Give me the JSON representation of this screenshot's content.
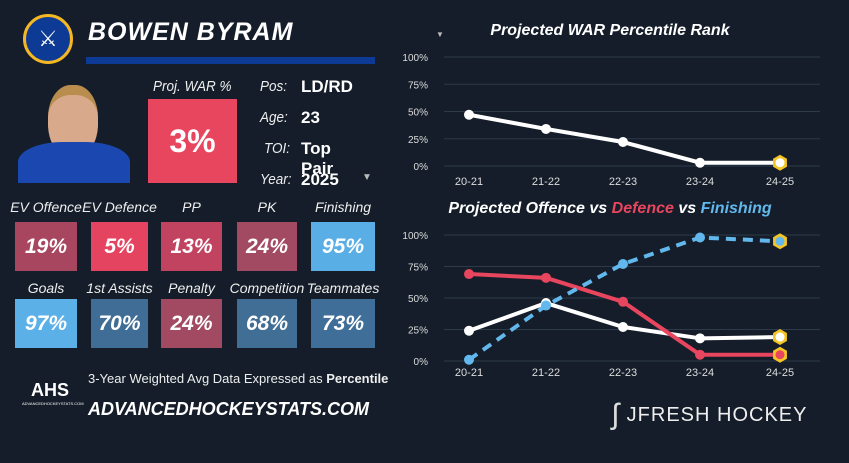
{
  "player": {
    "name": "BOWEN BYRAM",
    "team_logo": "buffalo-sabres-logo",
    "proj_war_label": "Proj. WAR %",
    "proj_war_value": "3%",
    "proj_war_color": "#e8455f",
    "info": [
      {
        "label": "Pos:",
        "value": "LD/RD"
      },
      {
        "label": "Age:",
        "value": "23"
      },
      {
        "label": "TOI:",
        "value": "Top Pair"
      },
      {
        "label": "Year:",
        "value": "2025"
      }
    ]
  },
  "tiles": [
    {
      "label": "EV Offence",
      "value": "19%",
      "color": "#a8465f"
    },
    {
      "label": "EV Defence",
      "value": "5%",
      "color": "#e4445f"
    },
    {
      "label": "PP",
      "value": "13%",
      "color": "#c24360"
    },
    {
      "label": "PK",
      "value": "24%",
      "color": "#a24a62"
    },
    {
      "label": "Finishing",
      "value": "95%",
      "color": "#5aaee6"
    },
    {
      "label": "Goals",
      "value": "97%",
      "color": "#5cb0e8"
    },
    {
      "label": "1st Assists",
      "value": "70%",
      "color": "#3f6d95"
    },
    {
      "label": "Penalty",
      "value": "24%",
      "color": "#a24a62"
    },
    {
      "label": "Competition",
      "value": "68%",
      "color": "#416e94"
    },
    {
      "label": "Teammates",
      "value": "73%",
      "color": "#3f6f98"
    }
  ],
  "footer": {
    "note_prefix": "3-Year Weighted Avg Data Expressed as ",
    "note_bold": "Percentile",
    "site": "ADVANCEDHOCKEYSTATS.COM",
    "ahs_logo": "AHS",
    "brand": "JFRESH HOCKEY"
  },
  "chart_data": [
    {
      "type": "line",
      "title": "Projected WAR Percentile Rank",
      "categories": [
        "20-21",
        "21-22",
        "22-23",
        "23-24",
        "24-25"
      ],
      "ylim": [
        0,
        100
      ],
      "yticks": [
        "0%",
        "25%",
        "50%",
        "75%",
        "100%"
      ],
      "grid": true,
      "series": [
        {
          "values": [
            47,
            34,
            22,
            3,
            3
          ],
          "color": "#ffffff"
        }
      ]
    },
    {
      "type": "line",
      "title": {
        "parts": [
          "Projected Offence vs ",
          "Defence",
          " vs ",
          "Finishing"
        ]
      },
      "categories": [
        "20-21",
        "21-22",
        "22-23",
        "23-24",
        "24-25"
      ],
      "ylim": [
        0,
        100
      ],
      "yticks": [
        "0%",
        "25%",
        "50%",
        "75%",
        "100%"
      ],
      "grid": true,
      "series": [
        {
          "name": "Offence",
          "values": [
            24,
            46,
            27,
            18,
            19
          ],
          "color": "#ffffff"
        },
        {
          "name": "Defence",
          "values": [
            69,
            66,
            47,
            5,
            5
          ],
          "color": "#e8455f"
        },
        {
          "name": "Finishing",
          "values": [
            1,
            44,
            77,
            98,
            95
          ],
          "color": "#62b8ec",
          "dashed": true
        }
      ]
    }
  ]
}
